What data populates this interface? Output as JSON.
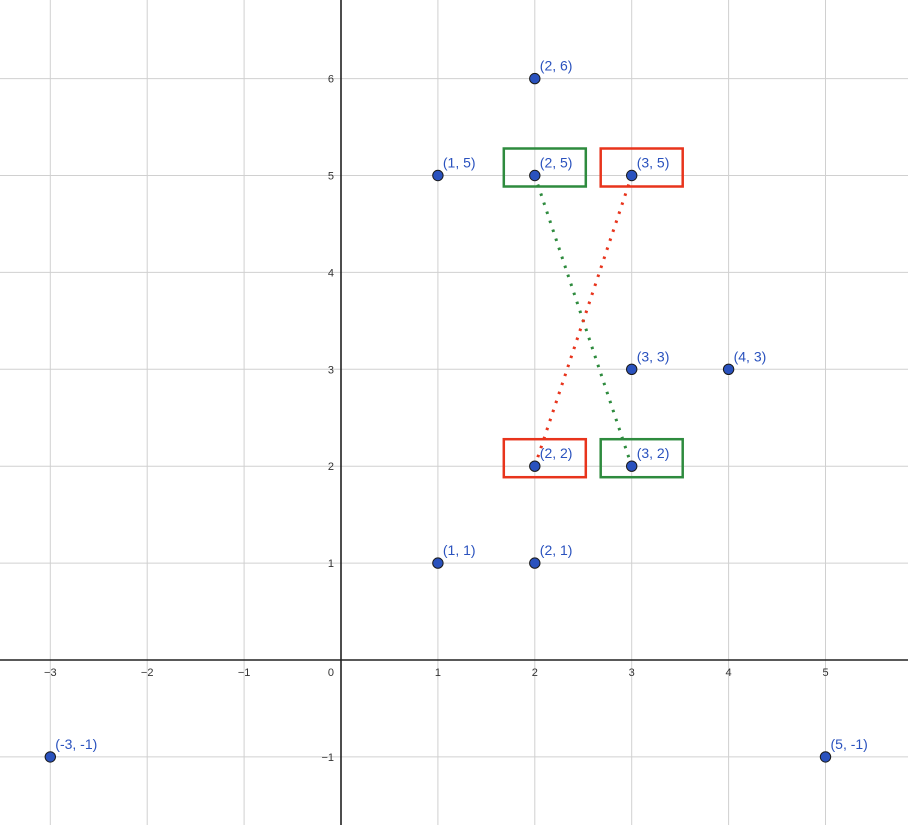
{
  "chart_data": {
    "type": "scatter",
    "title": "",
    "xlabel": "",
    "ylabel": "",
    "xlim": [
      -3.52,
      5.85
    ],
    "ylim": [
      -1.7,
      6.8
    ],
    "grid": true,
    "x_ticks": [
      -3,
      -2,
      -1,
      1,
      2,
      3,
      4,
      5
    ],
    "y_ticks": [
      -1,
      1,
      2,
      3,
      4,
      5,
      6
    ],
    "origin_label": "0",
    "points": [
      {
        "x": 2,
        "y": 6,
        "label": "(2, 6)"
      },
      {
        "x": 1,
        "y": 5,
        "label": "(1, 5)"
      },
      {
        "x": 2,
        "y": 5,
        "label": "(2, 5)"
      },
      {
        "x": 3,
        "y": 5,
        "label": "(3, 5)"
      },
      {
        "x": 3,
        "y": 3,
        "label": "(3, 3)"
      },
      {
        "x": 4,
        "y": 3,
        "label": "(4, 3)"
      },
      {
        "x": 2,
        "y": 2,
        "label": "(2, 2)"
      },
      {
        "x": 3,
        "y": 2,
        "label": "(3, 2)"
      },
      {
        "x": 1,
        "y": 1,
        "label": "(1, 1)"
      },
      {
        "x": 2,
        "y": 1,
        "label": "(2, 1)"
      },
      {
        "x": -3,
        "y": -1,
        "label": "(-3, -1)"
      },
      {
        "x": 5,
        "y": -1,
        "label": "(5, -1)"
      }
    ],
    "highlight_boxes": [
      {
        "around": [
          2,
          5
        ],
        "color": "#2e8b3e"
      },
      {
        "around": [
          3,
          5
        ],
        "color": "#e8341c"
      },
      {
        "around": [
          2,
          2
        ],
        "color": "#e8341c"
      },
      {
        "around": [
          3,
          2
        ],
        "color": "#2e8b3e"
      }
    ],
    "dotted_segments": [
      {
        "from": [
          2,
          5
        ],
        "to": [
          3,
          2
        ],
        "color": "#2e8b3e"
      },
      {
        "from": [
          2,
          2
        ],
        "to": [
          3,
          5
        ],
        "color": "#e8341c"
      }
    ]
  },
  "colors": {
    "point_fill": "#2a52be",
    "point_stroke": "#1a1a1a",
    "label": "#2a52be",
    "grid": "#d0d0d0",
    "axis": "#222222",
    "green": "#2e8b3e",
    "red": "#e8341c"
  }
}
